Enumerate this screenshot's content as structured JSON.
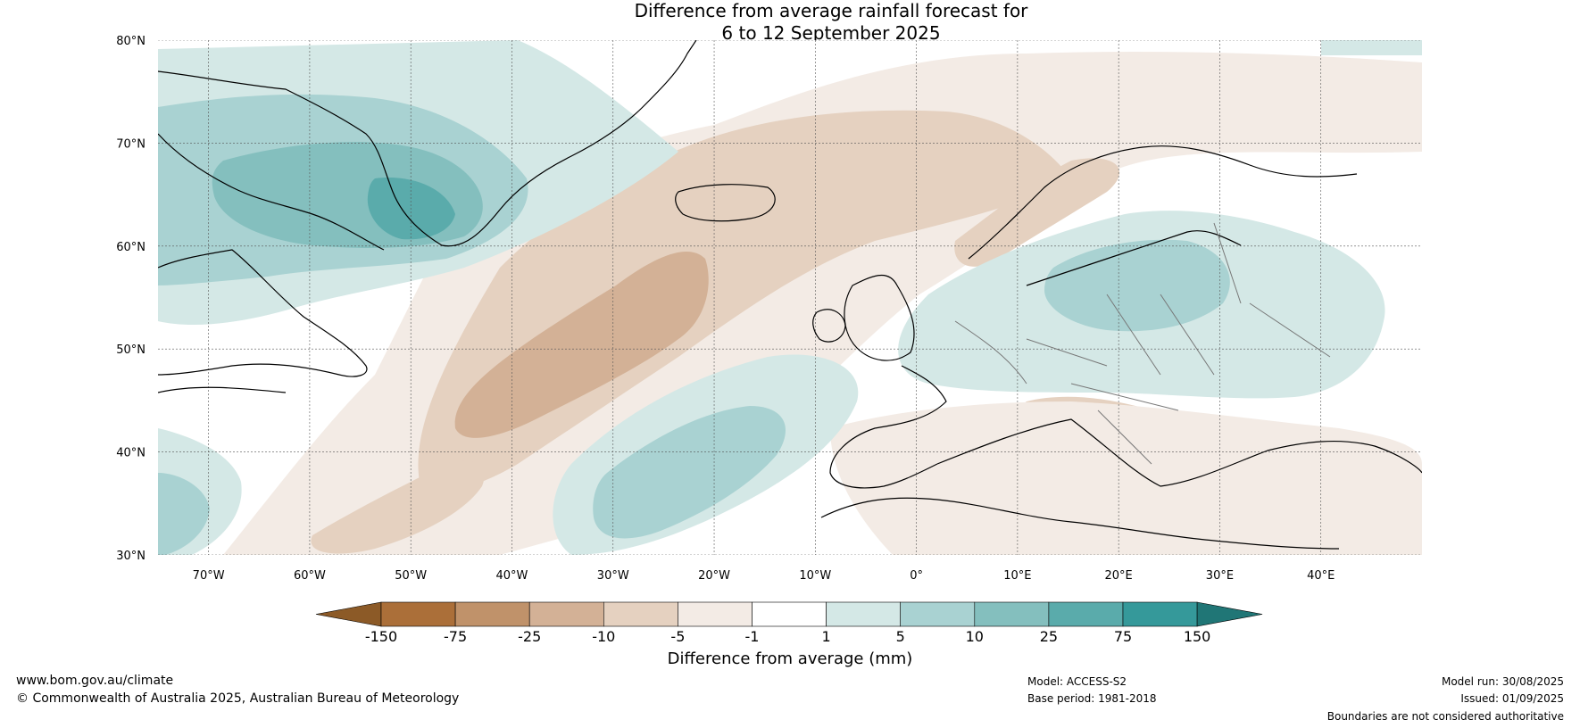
{
  "title": {
    "line1": "Difference from average rainfall forecast for",
    "line2": "6 to 12 September 2025"
  },
  "map": {
    "lon_range": [
      -75,
      50
    ],
    "lat_range": [
      30,
      80
    ],
    "lat_labels": [
      "30°N",
      "40°N",
      "50°N",
      "60°N",
      "70°N",
      "80°N"
    ],
    "lon_labels": [
      "70°W",
      "60°W",
      "50°W",
      "40°W",
      "30°W",
      "20°W",
      "10°W",
      "0°",
      "10°E",
      "20°E",
      "30°E",
      "40°E"
    ]
  },
  "colorbar": {
    "label": "Difference from average (mm)",
    "ticks": [
      "-150",
      "-75",
      "-25",
      "-10",
      "-5",
      "-1",
      "1",
      "5",
      "10",
      "25",
      "75",
      "150"
    ],
    "colors": {
      "under": "#8c5a27",
      "bins": [
        "#ab6f39",
        "#c0926a",
        "#d3b196",
        "#e5d1c0",
        "#f3ebe5",
        "#ffffff",
        "#d4e8e6",
        "#a9d2d2",
        "#84bfbe",
        "#5aabab",
        "#35999a"
      ],
      "over": "#207676"
    }
  },
  "footer": {
    "website": "www.bom.gov.au/climate",
    "copyright": "© Commonwealth of Australia 2025, Australian Bureau of Meteorology",
    "model": "Model: ACCESS-S2",
    "base_period": "Base period: 1981-2018",
    "model_run": "Model run: 30/08/2025",
    "issued": "Issued: 01/09/2025",
    "disclaimer": "Boundaries are not considered authoritative"
  }
}
